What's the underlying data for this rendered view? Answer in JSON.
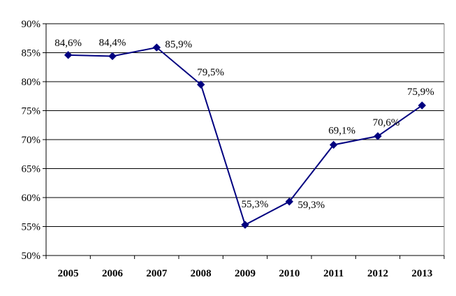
{
  "chart_data": {
    "type": "line",
    "categories": [
      "2005",
      "2006",
      "2007",
      "2008",
      "2009",
      "2010",
      "2011",
      "2012",
      "2013"
    ],
    "series": [
      {
        "values": [
          84.6,
          84.4,
          85.9,
          79.5,
          55.3,
          59.3,
          69.1,
          70.6,
          75.9
        ],
        "value_labels": [
          "84,6%",
          "84,4%",
          "85,9%",
          "79,5%",
          "55,3%",
          "59,3%",
          "69,1%",
          "70,6%",
          "75,9%"
        ],
        "color": "#000080",
        "marker": "diamond"
      }
    ],
    "ylim": [
      50,
      90
    ],
    "ytick_values": [
      50,
      55,
      60,
      65,
      70,
      75,
      80,
      85,
      90
    ],
    "ytick_labels": [
      "50%",
      "55%",
      "60%",
      "65%",
      "70%",
      "75%",
      "80%",
      "85%",
      "90%"
    ],
    "grid": true,
    "legend": false,
    "title": "",
    "xlabel": "",
    "ylabel": ""
  }
}
